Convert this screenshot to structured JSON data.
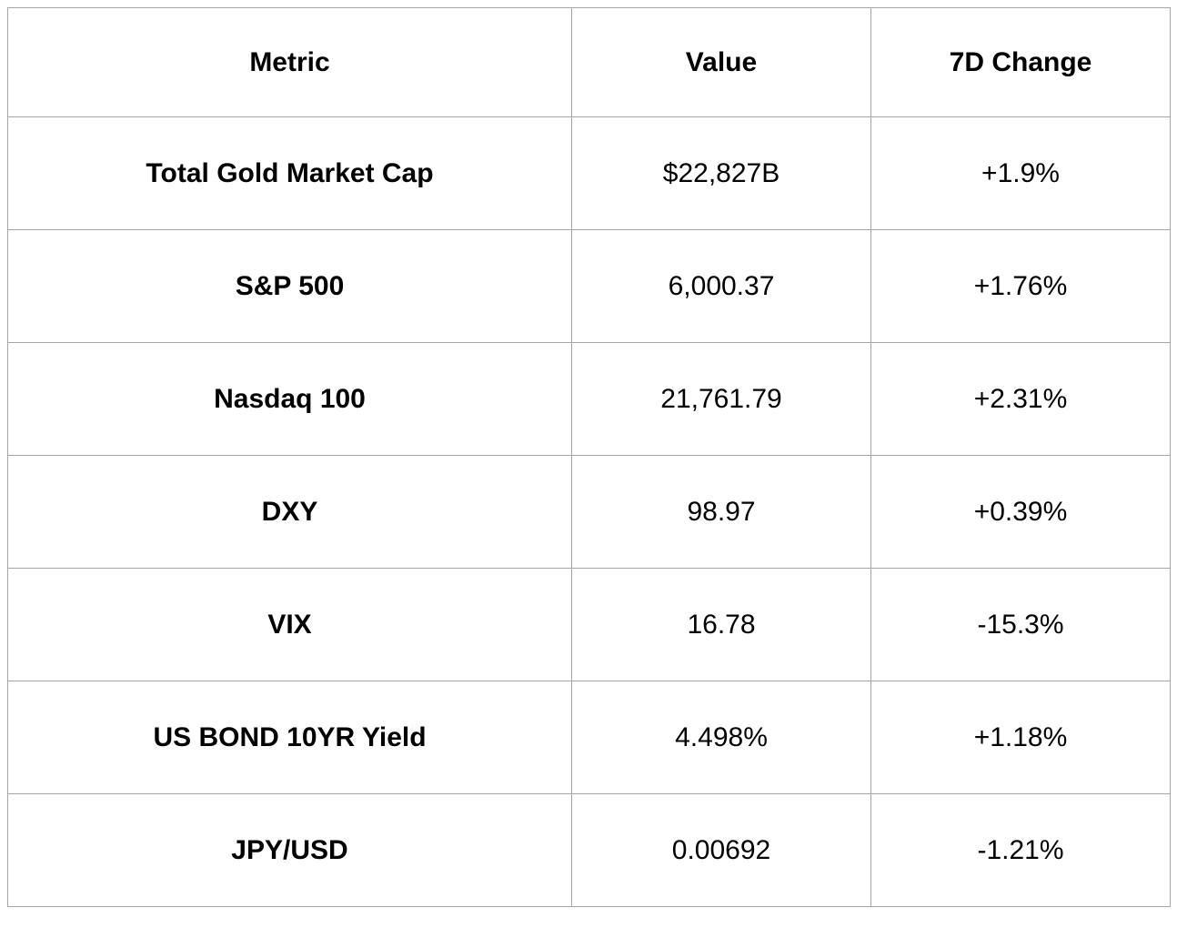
{
  "colors": {
    "background": "#ffffff",
    "text": "#000000",
    "border": "#a6a6a6"
  },
  "chart_data": {
    "type": "table",
    "columns": [
      "Metric",
      "Value",
      "7D Change"
    ],
    "rows": [
      {
        "cells": [
          "Total Gold Market Cap",
          "$22,827B",
          "+1.9%"
        ]
      },
      {
        "cells": [
          "S&P 500",
          "6,000.37",
          "+1.76%"
        ]
      },
      {
        "cells": [
          "Nasdaq 100",
          "21,761.79",
          "+2.31%"
        ]
      },
      {
        "cells": [
          "DXY",
          "98.97",
          "+0.39%"
        ]
      },
      {
        "cells": [
          "VIX",
          "16.78",
          "-15.3%"
        ]
      },
      {
        "cells": [
          "US BOND 10YR Yield",
          "4.498%",
          "+1.18%"
        ]
      },
      {
        "cells": [
          "JPY/USD",
          "0.00692",
          "-1.21%"
        ]
      }
    ],
    "layout": {
      "grid": true,
      "header_bold": true,
      "metric_column_bold": true,
      "cell_alignment": "center"
    }
  }
}
